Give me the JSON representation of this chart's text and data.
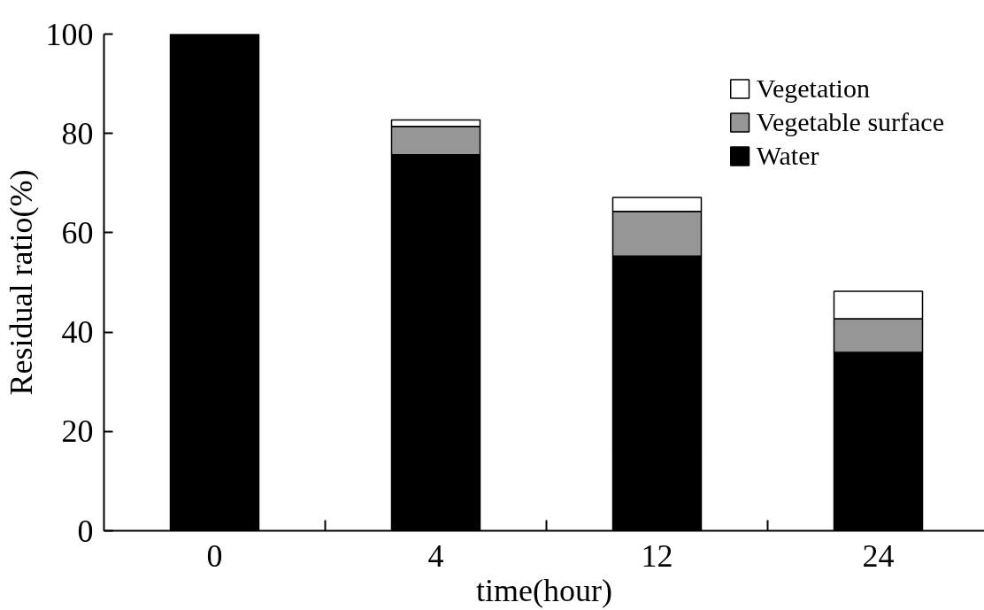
{
  "chart_data": {
    "type": "bar",
    "stacked": true,
    "xlabel": "time(hour)",
    "ylabel": "Residual ratio(%)",
    "categories": [
      "0",
      "4",
      "12",
      "24"
    ],
    "series": [
      {
        "name": "Water",
        "color": "#000000",
        "values": [
          100,
          75.7,
          55.3,
          35.9
        ]
      },
      {
        "name": "Vegetable surface",
        "color": "#969696",
        "values": [
          null,
          5.7,
          9.0,
          6.8
        ]
      },
      {
        "name": "Vegetation",
        "color": "#ffffff",
        "values": [
          null,
          1.3,
          2.8,
          5.5
        ]
      }
    ],
    "ylim": [
      0,
      100
    ],
    "yticks": [
      0,
      20,
      40,
      60,
      80,
      100
    ],
    "grid": false,
    "legend": "top right"
  }
}
